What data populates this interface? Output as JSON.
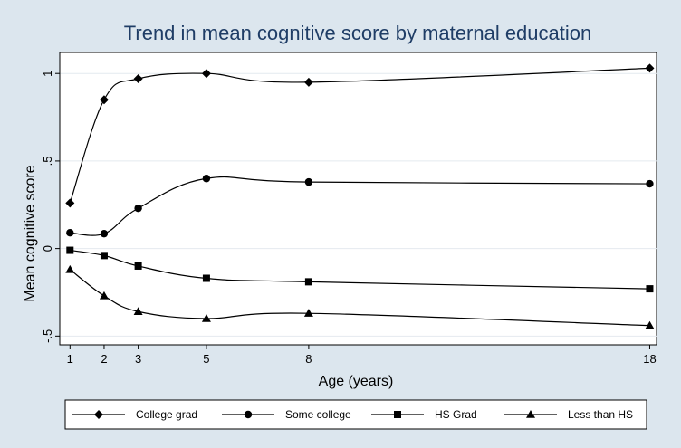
{
  "chart_data": {
    "type": "line",
    "title": "Trend in mean cognitive score by maternal education",
    "xlabel": "Age (years)",
    "ylabel": "Mean cognitive score",
    "x": [
      1,
      2,
      3,
      5,
      8,
      18
    ],
    "x_ticks": [
      1,
      2,
      3,
      5,
      8,
      18
    ],
    "y_ticks": [
      -0.5,
      0,
      0.5,
      1
    ],
    "y_tick_labels": [
      "-.5",
      "0",
      ".5",
      "1"
    ],
    "xlim": [
      0.7,
      18.2
    ],
    "ylim": [
      -0.55,
      1.12
    ],
    "grid": true,
    "legend_position": "bottom",
    "line_color": "#000000",
    "plot_background": "#ffffff",
    "outer_background": "#dce6ee",
    "title_color": "#1f3d66",
    "series": [
      {
        "name": "College grad",
        "marker": "diamond",
        "values": [
          0.26,
          0.85,
          0.97,
          1.0,
          0.95,
          1.03
        ]
      },
      {
        "name": "Some college",
        "marker": "circle",
        "values": [
          0.09,
          0.085,
          0.23,
          0.4,
          0.38,
          0.37
        ]
      },
      {
        "name": "HS Grad",
        "marker": "square",
        "values": [
          -0.01,
          -0.04,
          -0.1,
          -0.17,
          -0.19,
          -0.23
        ]
      },
      {
        "name": "Less than HS",
        "marker": "triangle",
        "values": [
          -0.12,
          -0.27,
          -0.36,
          -0.4,
          -0.37,
          -0.44
        ]
      }
    ]
  }
}
